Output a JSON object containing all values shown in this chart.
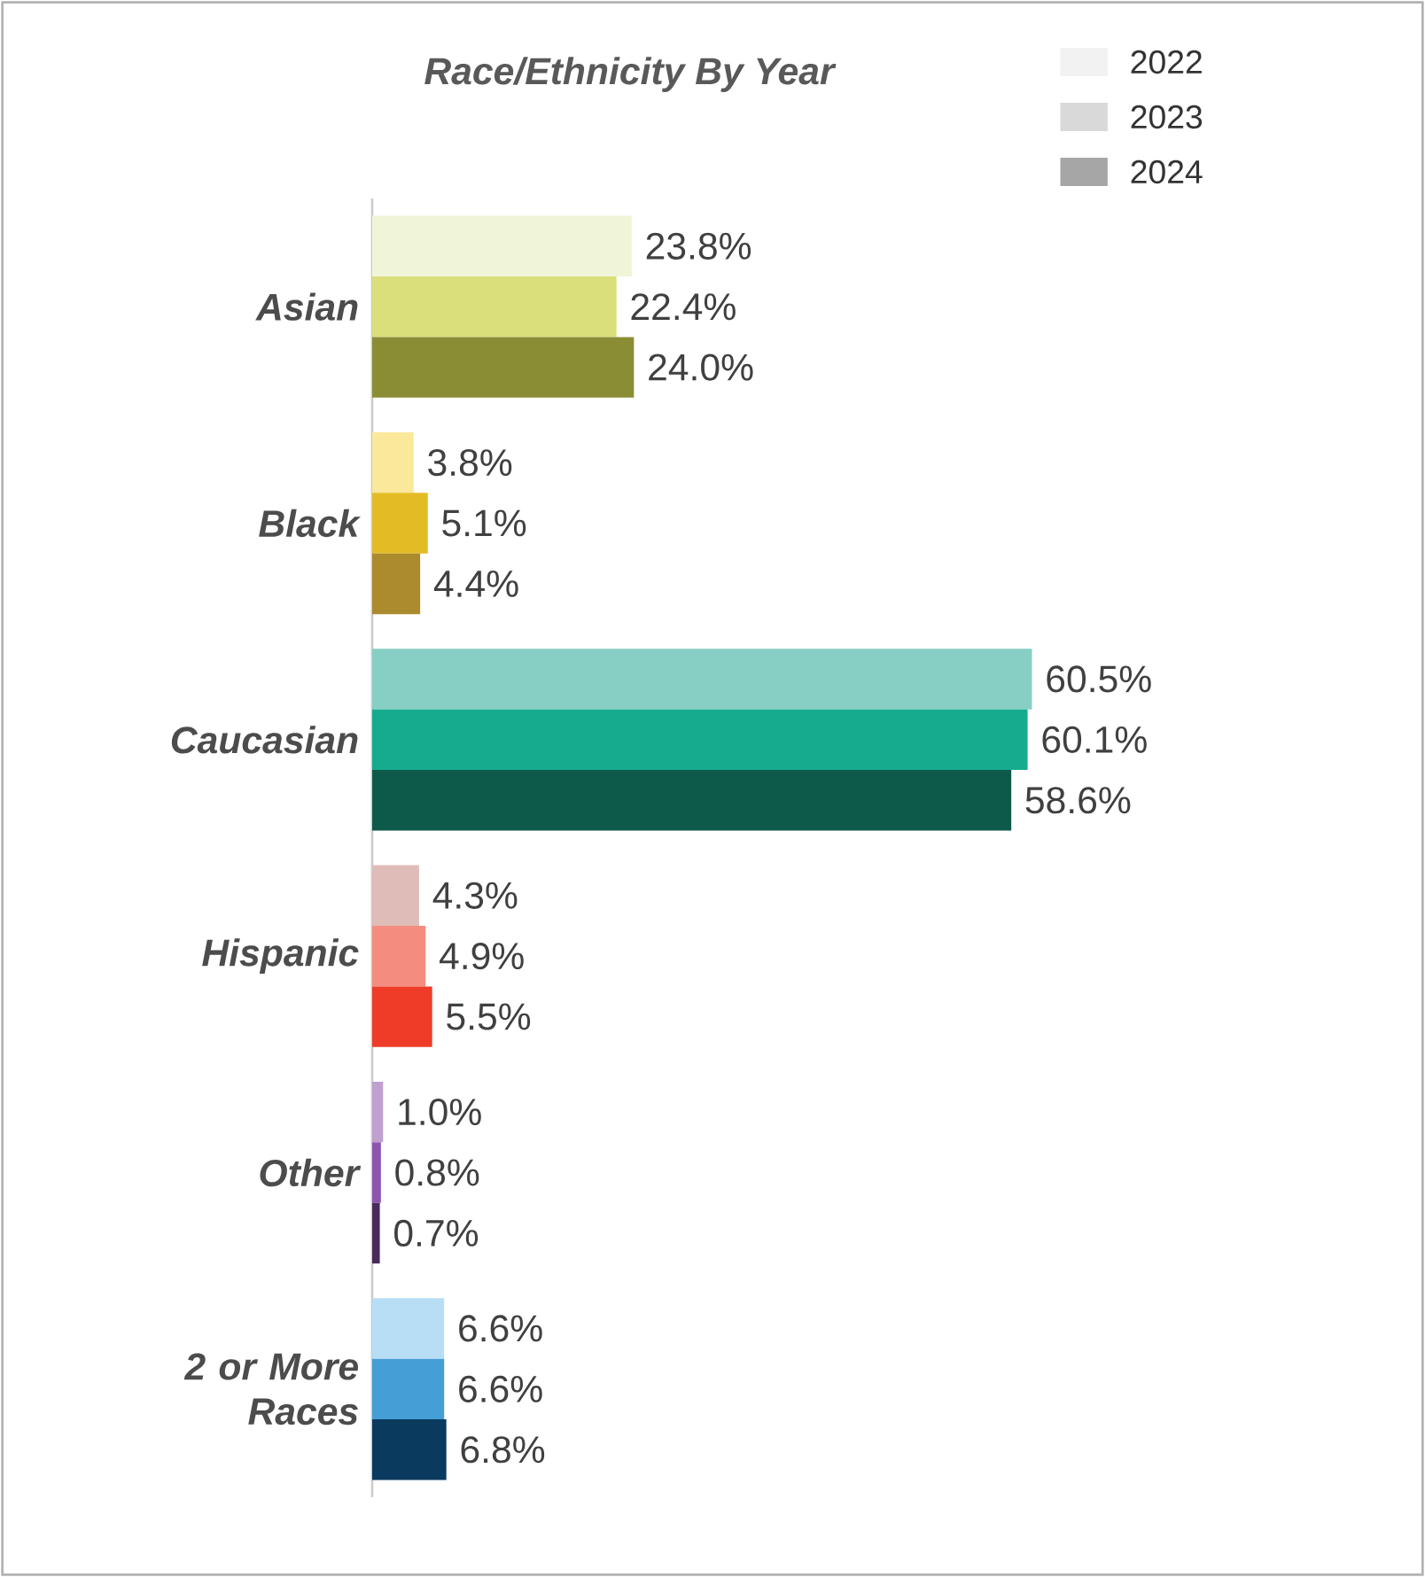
{
  "chart_data": {
    "type": "bar",
    "orientation": "horizontal",
    "title": "Race/Ethnicity By Year",
    "categories": [
      "Asian",
      "Black",
      "Caucasian",
      "Hispanic",
      "Other",
      "2 or More Races"
    ],
    "legend": "top right",
    "series": [
      {
        "name": "2022",
        "color": "#f2f2f2",
        "colors": [
          "#f0f5d8",
          "#fbe89a",
          "#87cfc4",
          "#e0bcb8",
          "#c0a0d0",
          "#b8def5"
        ],
        "values": [
          23.8,
          3.8,
          60.5,
          4.3,
          1.0,
          6.6
        ],
        "value_labels": [
          "23.8%",
          "3.8%",
          "60.5%",
          "4.3%",
          "1.0%",
          "6.6%"
        ]
      },
      {
        "name": "2023",
        "color": "#d9d9d9",
        "colors": [
          "#dadf7c",
          "#e3bc25",
          "#16ab8f",
          "#f48d80",
          "#8e55b0",
          "#459ed6"
        ],
        "values": [
          22.4,
          5.1,
          60.1,
          4.9,
          0.8,
          6.6
        ],
        "value_labels": [
          "22.4%",
          "5.1%",
          "60.1%",
          "4.9%",
          "0.8%",
          "6.6%"
        ]
      },
      {
        "name": "2024",
        "color": "#a6a6a6",
        "colors": [
          "#8a8d34",
          "#ab8b2e",
          "#0d5a4a",
          "#ee3c28",
          "#4a2a5a",
          "#0a3a5e"
        ],
        "values": [
          24.0,
          4.4,
          58.6,
          5.5,
          0.7,
          6.8
        ],
        "value_labels": [
          "24.0%",
          "4.4%",
          "58.6%",
          "5.5%",
          "0.7%",
          "6.8%"
        ]
      }
    ]
  }
}
